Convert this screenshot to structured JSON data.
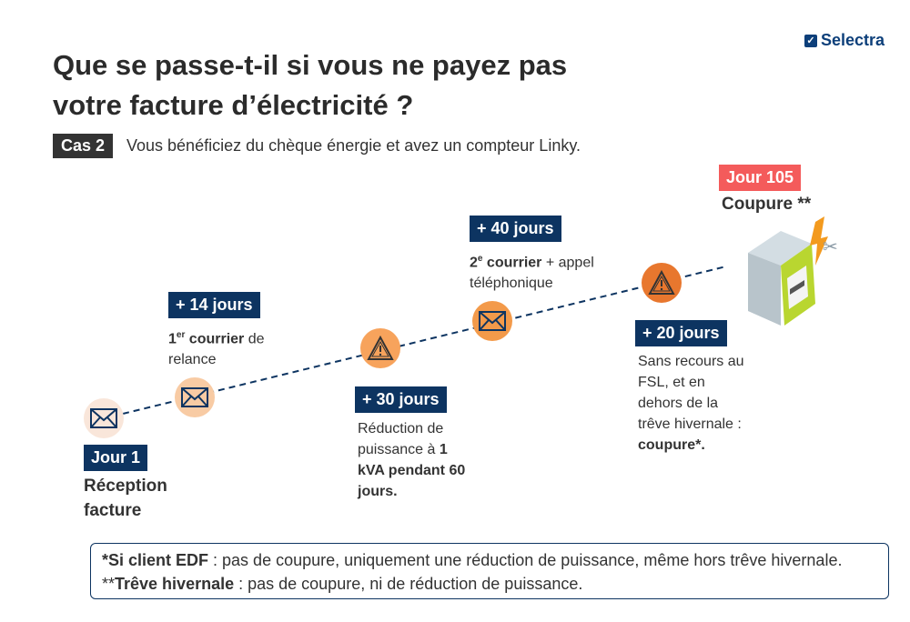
{
  "brand": "Selectra",
  "title_line1": "Que se passe-t-il si vous ne payez pas",
  "title_line2": "votre facture d’électricité ?",
  "case_label": "Cas 2",
  "case_text": "Vous bénéficiez du chèque énergie et avez un compteur Linky.",
  "steps": [
    {
      "badge": "Jour 1",
      "line1": "Réception",
      "line2": "facture",
      "icon": "envelope-icon",
      "color": "#f9e6da"
    },
    {
      "badge": "+ 14 jours",
      "num": "1",
      "sup": "er",
      "bold": " courrier",
      "rest": " de",
      "line2": "relance",
      "icon": "envelope-icon",
      "color": "#f8cba4"
    },
    {
      "badge": "+ 30 jours",
      "line1": "Réduction de",
      "line2a": "puissance à ",
      "line2b": "1",
      "line3": "kVA pendant 60",
      "line4": "jours.",
      "icon": "warning-icon",
      "color": "#f7a35c"
    },
    {
      "badge": "+ 40 jours",
      "num": "2",
      "sup": "e",
      "bold": " courrier",
      "rest": " + appel",
      "line2": "téléphonique",
      "icon": "envelope-icon",
      "color": "#f39a4a"
    },
    {
      "badge": "+ 20 jours",
      "line1": "Sans recours au",
      "line2": "FSL, et en",
      "line3": "dehors de la",
      "line4": "trêve hivernale :",
      "line5": "coupure*.",
      "icon": "warning-icon",
      "color": "#e8772e"
    }
  ],
  "final": {
    "badge": "Jour 105",
    "label": "Coupure **",
    "badge_color": "#f45b5b",
    "icon": "linky-meter-icon"
  },
  "note": {
    "b1": "*Si client EDF",
    "t1": " : pas de coupure, uniquement une réduction de puissance, même hors trêve hivernale. **",
    "b2": "Trêve hivernale",
    "t2": "  : pas de coupure, ni de réduction de puissance."
  }
}
